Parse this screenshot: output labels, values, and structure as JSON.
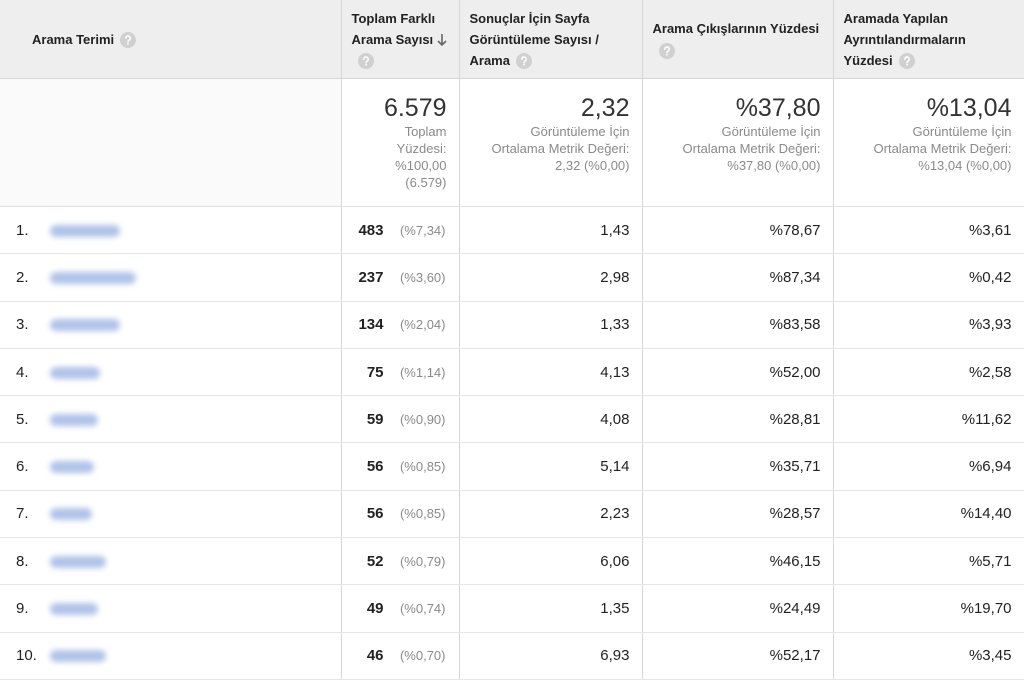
{
  "headers": [
    "Arama Terimi",
    "Toplam Farklı Arama Sayısı",
    "Sonuçlar İçin Sayfa Görüntüleme Sayısı / Arama",
    "Arama Çıkışlarının Yüzdesi",
    "Aramada Yapılan Ayrıntılandırmaların Yüzdesi"
  ],
  "totals": [
    {
      "value": "6.579",
      "desc": [
        "Toplam",
        "Yüzdesi:",
        "%100,00",
        "(6.579)"
      ]
    },
    {
      "value": "2,32",
      "desc": [
        "Görüntüleme İçin",
        "Ortalama Metrik Değeri:",
        "2,32 (%0,00)"
      ]
    },
    {
      "value": "%37,80",
      "desc": [
        "Görüntüleme İçin",
        "Ortalama Metrik Değeri:",
        "%37,80 (%0,00)"
      ]
    },
    {
      "value": "%13,04",
      "desc": [
        "Görüntüleme İçin",
        "Ortalama Metrik Değeri:",
        "%13,04 (%0,00)"
      ]
    }
  ],
  "rows": [
    [
      "1.",
      "483",
      "(%7,34)",
      "1,43",
      "%78,67",
      "%3,61"
    ],
    [
      "2.",
      "237",
      "(%3,60)",
      "2,98",
      "%87,34",
      "%0,42"
    ],
    [
      "3.",
      "134",
      "(%2,04)",
      "1,33",
      "%83,58",
      "%3,93"
    ],
    [
      "4.",
      "75",
      "(%1,14)",
      "4,13",
      "%52,00",
      "%2,58"
    ],
    [
      "5.",
      "59",
      "(%0,90)",
      "4,08",
      "%28,81",
      "%11,62"
    ],
    [
      "6.",
      "56",
      "(%0,85)",
      "5,14",
      "%35,71",
      "%6,94"
    ],
    [
      "7.",
      "56",
      "(%0,85)",
      "2,23",
      "%28,57",
      "%14,40"
    ],
    [
      "8.",
      "52",
      "(%0,79)",
      "6,06",
      "%46,15",
      "%5,71"
    ],
    [
      "9.",
      "49",
      "(%0,74)",
      "1,35",
      "%24,49",
      "%19,70"
    ],
    [
      "10.",
      "46",
      "(%0,70)",
      "6,93",
      "%52,17",
      "%3,45"
    ]
  ]
}
